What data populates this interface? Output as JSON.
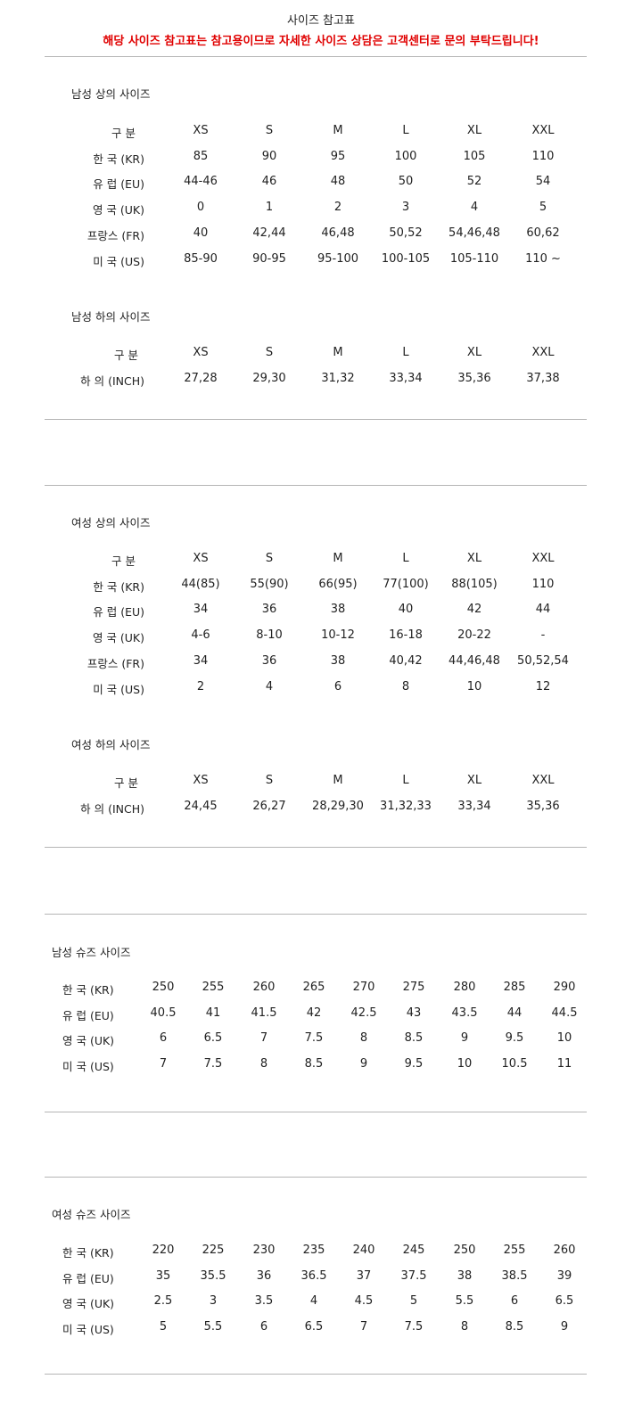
{
  "title": "사이즈 참고표",
  "notice": "해당 사이즈 참고표는 참고용이므로 자세한 사이즈 상담은 고객센터로 문의 부탁드립니다!",
  "sections": [
    {
      "heading": "남성 상의 사이즈",
      "header_label": "구 분",
      "columns": [
        "XS",
        "S",
        "M",
        "L",
        "XL",
        "XXL"
      ],
      "rows": [
        {
          "label": "한 국 (KR)",
          "values": [
            "85",
            "90",
            "95",
            "100",
            "105",
            "110"
          ]
        },
        {
          "label": "유 럽 (EU)",
          "values": [
            "44-46",
            "46",
            "48",
            "50",
            "52",
            "54"
          ]
        },
        {
          "label": "영 국 (UK)",
          "values": [
            "0",
            "1",
            "2",
            "3",
            "4",
            "5"
          ]
        },
        {
          "label": "프랑스 (FR)",
          "values": [
            "40",
            "42,44",
            "46,48",
            "50,52",
            "54,46,48",
            "60,62"
          ]
        },
        {
          "label": "미 국 (US)",
          "values": [
            "85-90",
            "90-95",
            "95-100",
            "100-105",
            "105-110",
            "110 ~"
          ]
        }
      ]
    },
    {
      "heading": "남성 하의 사이즈",
      "header_label": "구 분",
      "columns": [
        "XS",
        "S",
        "M",
        "L",
        "XL",
        "XXL"
      ],
      "rows": [
        {
          "label": "하 의 (INCH)",
          "values": [
            "27,28",
            "29,30",
            "31,32",
            "33,34",
            "35,36",
            "37,38"
          ]
        }
      ]
    },
    {
      "heading": "여성 상의 사이즈",
      "header_label": "구 분",
      "columns": [
        "XS",
        "S",
        "M",
        "L",
        "XL",
        "XXL"
      ],
      "rows": [
        {
          "label": "한 국 (KR)",
          "values": [
            "44(85)",
            "55(90)",
            "66(95)",
            "77(100)",
            "88(105)",
            "110"
          ]
        },
        {
          "label": "유 럽 (EU)",
          "values": [
            "34",
            "36",
            "38",
            "40",
            "42",
            "44"
          ]
        },
        {
          "label": "영 국 (UK)",
          "values": [
            "4-6",
            "8-10",
            "10-12",
            "16-18",
            "20-22",
            "-"
          ]
        },
        {
          "label": "프랑스 (FR)",
          "values": [
            "34",
            "36",
            "38",
            "40,42",
            "44,46,48",
            "50,52,54"
          ]
        },
        {
          "label": "미 국 (US)",
          "values": [
            "2",
            "4",
            "6",
            "8",
            "10",
            "12"
          ]
        }
      ]
    },
    {
      "heading": "여성 하의 사이즈",
      "header_label": "구 분",
      "columns": [
        "XS",
        "S",
        "M",
        "L",
        "XL",
        "XXL"
      ],
      "rows": [
        {
          "label": "하 의 (INCH)",
          "values": [
            "24,45",
            "26,27",
            "28,29,30",
            "31,32,33",
            "33,34",
            "35,36"
          ]
        }
      ]
    },
    {
      "heading": "남성 슈즈 사이즈",
      "rows": [
        {
          "label": "한 국 (KR)",
          "values": [
            "250",
            "255",
            "260",
            "265",
            "270",
            "275",
            "280",
            "285",
            "290"
          ]
        },
        {
          "label": "유 럽 (EU)",
          "values": [
            "40.5",
            "41",
            "41.5",
            "42",
            "42.5",
            "43",
            "43.5",
            "44",
            "44.5"
          ]
        },
        {
          "label": "영 국 (UK)",
          "values": [
            "6",
            "6.5",
            "7",
            "7.5",
            "8",
            "8.5",
            "9",
            "9.5",
            "10"
          ]
        },
        {
          "label": "미 국 (US)",
          "values": [
            "7",
            "7.5",
            "8",
            "8.5",
            "9",
            "9.5",
            "10",
            "10.5",
            "11"
          ]
        }
      ]
    },
    {
      "heading": "여성 슈즈 사이즈",
      "rows": [
        {
          "label": "한 국 (KR)",
          "values": [
            "220",
            "225",
            "230",
            "235",
            "240",
            "245",
            "250",
            "255",
            "260"
          ]
        },
        {
          "label": "유 럽 (EU)",
          "values": [
            "35",
            "35.5",
            "36",
            "36.5",
            "37",
            "37.5",
            "38",
            "38.5",
            "39"
          ]
        },
        {
          "label": "영 국 (UK)",
          "values": [
            "2.5",
            "3",
            "3.5",
            "4",
            "4.5",
            "5",
            "5.5",
            "6",
            "6.5"
          ]
        },
        {
          "label": "미 국 (US)",
          "values": [
            "5",
            "5.5",
            "6",
            "6.5",
            "7",
            "7.5",
            "8",
            "8.5",
            "9"
          ]
        }
      ]
    }
  ]
}
